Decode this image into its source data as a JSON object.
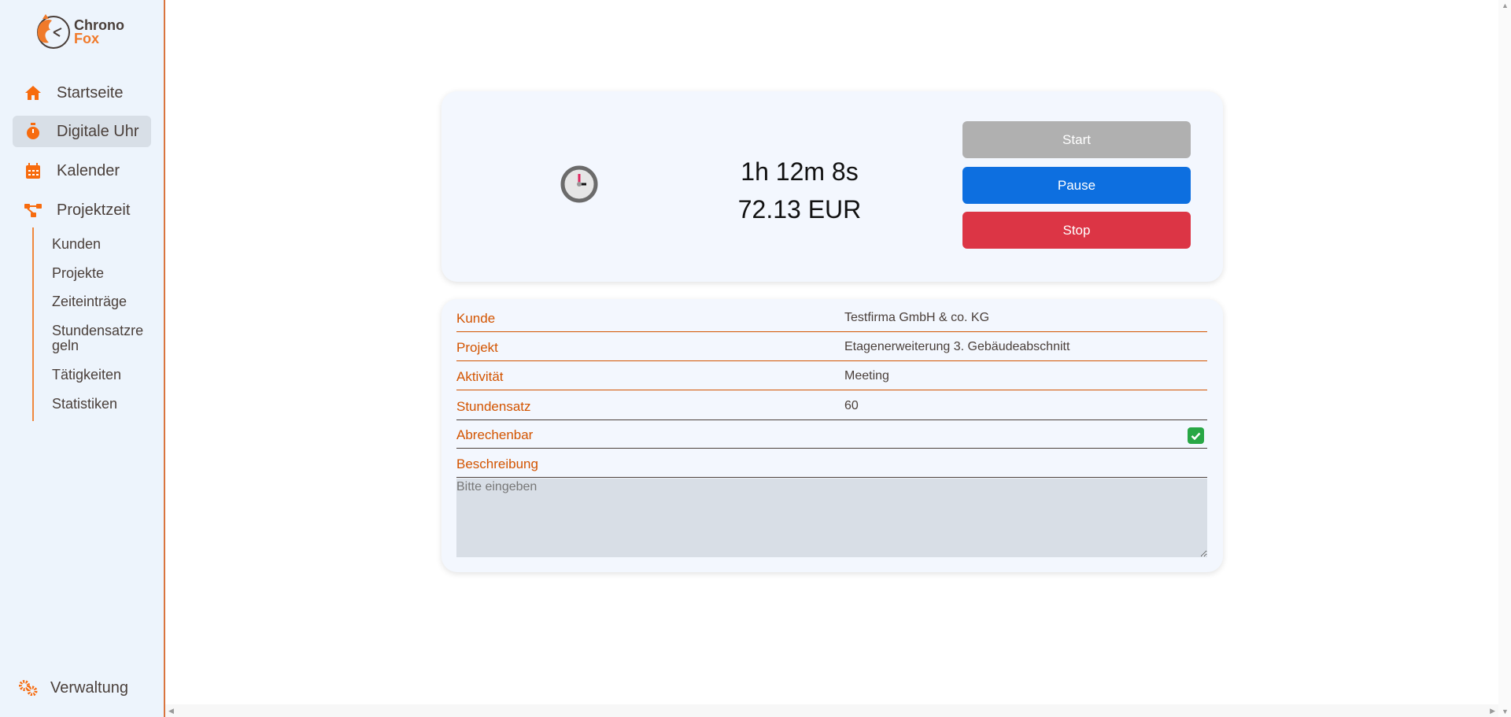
{
  "app": {
    "logo_line1": "Chrono",
    "logo_line2": "Fox"
  },
  "sidebar": {
    "items": [
      {
        "label": "Startseite",
        "icon": "home-icon"
      },
      {
        "label": "Digitale Uhr",
        "icon": "stopwatch-icon",
        "active": true
      },
      {
        "label": "Kalender",
        "icon": "calendar-icon"
      },
      {
        "label": "Projektzeit",
        "icon": "project-tree-icon"
      }
    ],
    "sub_items": [
      "Kunden",
      "Projekte",
      "Zeiteinträge",
      "Stundensatzregeln",
      "Tätigkeiten",
      "Statistiken"
    ],
    "bottom": {
      "label": "Verwaltung",
      "icon": "gears-icon"
    }
  },
  "timer": {
    "duration": "1h 12m 8s",
    "amount": "72.13 EUR",
    "start_label": "Start",
    "pause_label": "Pause",
    "stop_label": "Stop"
  },
  "colors": {
    "accent": "#f76b0e",
    "start": "#b0b0b0",
    "pause": "#0d6fe0",
    "stop": "#dc3545",
    "label": "#d35400",
    "check": "#28a745"
  },
  "form": {
    "fields": [
      {
        "label": "Kunde",
        "value": "Testfirma GmbH & co. KG"
      },
      {
        "label": "Projekt",
        "value": "Etagenerweiterung 3. Gebäudeabschnitt"
      },
      {
        "label": "Aktivität",
        "value": "Meeting"
      },
      {
        "label": "Stundensatz",
        "value": "60"
      }
    ],
    "billable": {
      "label": "Abrechenbar",
      "checked": true
    },
    "description": {
      "label": "Beschreibung",
      "value": "",
      "placeholder": "Bitte eingeben"
    }
  }
}
